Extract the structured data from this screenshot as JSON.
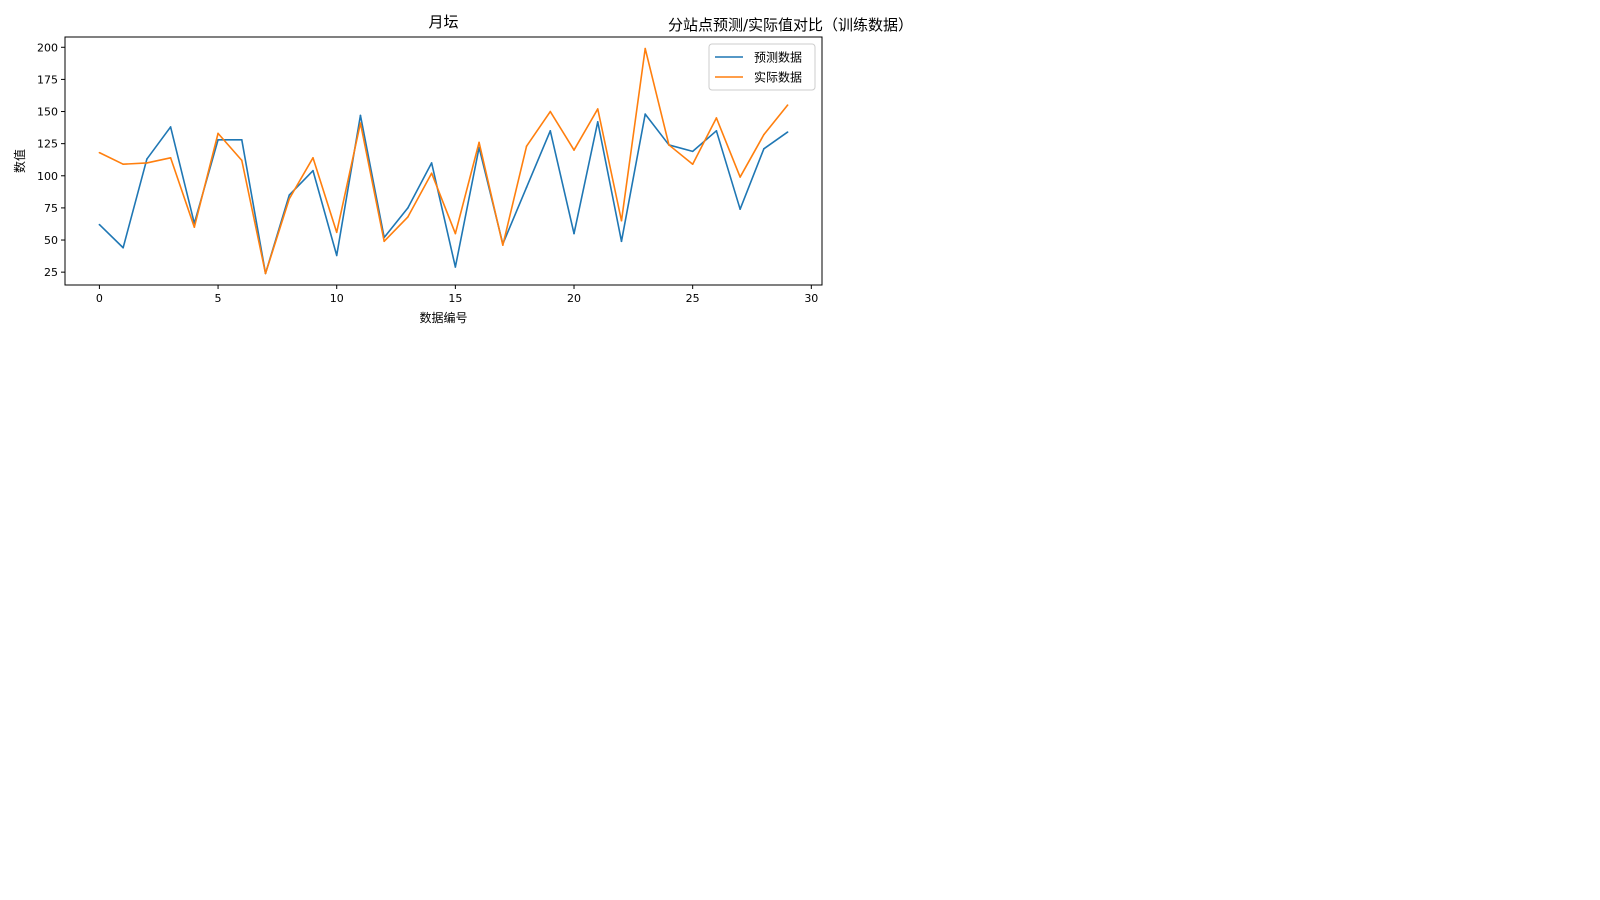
{
  "figure_title": "分站点预测/实际值对比（训练数据）",
  "chart_data": {
    "type": "line",
    "title": "月坛",
    "xlabel": "数据编号",
    "ylabel": "数值",
    "x": [
      0,
      1,
      2,
      3,
      4,
      5,
      6,
      7,
      8,
      9,
      10,
      11,
      12,
      13,
      14,
      15,
      16,
      17,
      18,
      19,
      20,
      21,
      22,
      23,
      24,
      25,
      26,
      27,
      28,
      29
    ],
    "xlim": [
      -1.45,
      30.45
    ],
    "ylim": [
      15,
      208
    ],
    "xticks": [
      0,
      5,
      10,
      15,
      20,
      25,
      30
    ],
    "yticks": [
      25,
      50,
      75,
      100,
      125,
      150,
      175,
      200
    ],
    "grid": false,
    "legend": "top-right",
    "series": [
      {
        "name": "预测数据",
        "color": "#1f77b4",
        "values": [
          62,
          44,
          113,
          138,
          63,
          128,
          128,
          24,
          85,
          104,
          38,
          147,
          52,
          75,
          110,
          29,
          122,
          47,
          91,
          135,
          55,
          142,
          49,
          148,
          124,
          119,
          135,
          74,
          121,
          134
        ]
      },
      {
        "name": "实际数据",
        "color": "#ff7f0e",
        "values": [
          118,
          109,
          110,
          114,
          60,
          133,
          112,
          24,
          82,
          114,
          56,
          141,
          49,
          68,
          102,
          55,
          126,
          46,
          123,
          150,
          120,
          152,
          65,
          199,
          124,
          109,
          145,
          99,
          132,
          155
        ]
      }
    ]
  }
}
